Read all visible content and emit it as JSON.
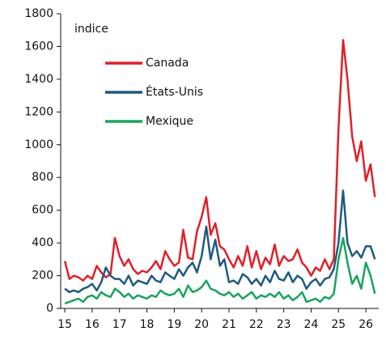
{
  "chart_data": {
    "type": "line",
    "y_label": "indice",
    "x": [
      2015,
      2015.17,
      2015.33,
      2015.5,
      2015.67,
      2015.83,
      2016,
      2016.17,
      2016.33,
      2016.5,
      2016.67,
      2016.83,
      2017,
      2017.17,
      2017.33,
      2017.5,
      2017.67,
      2017.83,
      2018,
      2018.17,
      2018.33,
      2018.5,
      2018.67,
      2018.83,
      2019,
      2019.17,
      2019.33,
      2019.5,
      2019.67,
      2019.83,
      2020,
      2020.17,
      2020.33,
      2020.5,
      2020.67,
      2020.83,
      2021,
      2021.17,
      2021.33,
      2021.5,
      2021.67,
      2021.83,
      2022,
      2022.17,
      2022.33,
      2022.5,
      2022.67,
      2022.83,
      2023,
      2023.17,
      2023.33,
      2023.5,
      2023.67,
      2023.83,
      2024,
      2024.17,
      2024.33,
      2024.5,
      2024.67,
      2024.83,
      2025,
      2025.17,
      2025.33,
      2025.5,
      2025.67,
      2025.83,
      2026,
      2026.17,
      2026.33
    ],
    "series": [
      {
        "name": "Canada",
        "color": "#e0202a",
        "values": [
          290,
          180,
          200,
          190,
          170,
          200,
          180,
          260,
          220,
          190,
          210,
          430,
          320,
          260,
          300,
          240,
          210,
          230,
          220,
          250,
          290,
          240,
          350,
          300,
          260,
          280,
          480,
          310,
          300,
          470,
          560,
          680,
          450,
          520,
          380,
          360,
          300,
          250,
          320,
          260,
          380,
          250,
          350,
          240,
          310,
          270,
          390,
          260,
          320,
          290,
          300,
          360,
          280,
          250,
          200,
          250,
          230,
          300,
          240,
          300,
          1100,
          1640,
          1400,
          1050,
          900,
          1020,
          780,
          880,
          680
        ]
      },
      {
        "name": "États-Unis",
        "color": "#1f5a7f",
        "values": [
          120,
          100,
          110,
          100,
          120,
          130,
          150,
          110,
          160,
          250,
          200,
          180,
          180,
          150,
          200,
          140,
          170,
          160,
          150,
          200,
          170,
          160,
          220,
          200,
          180,
          240,
          200,
          250,
          280,
          220,
          320,
          500,
          300,
          420,
          260,
          300,
          160,
          170,
          150,
          210,
          190,
          150,
          180,
          140,
          200,
          160,
          230,
          180,
          170,
          220,
          160,
          200,
          180,
          120,
          160,
          180,
          140,
          180,
          190,
          240,
          400,
          720,
          400,
          320,
          350,
          310,
          380,
          380,
          300
        ]
      },
      {
        "name": "Mexique",
        "color": "#1aa35e",
        "values": [
          30,
          40,
          50,
          60,
          40,
          70,
          80,
          60,
          100,
          80,
          70,
          120,
          100,
          70,
          90,
          60,
          80,
          70,
          60,
          80,
          70,
          110,
          90,
          80,
          90,
          120,
          70,
          140,
          100,
          110,
          130,
          170,
          120,
          110,
          90,
          80,
          100,
          70,
          90,
          60,
          80,
          100,
          60,
          80,
          70,
          90,
          70,
          100,
          60,
          80,
          50,
          70,
          100,
          40,
          50,
          60,
          40,
          70,
          60,
          90,
          300,
          430,
          280,
          150,
          200,
          120,
          280,
          200,
          90
        ]
      }
    ],
    "xlim": [
      2014.85,
      2026.47
    ],
    "xticks": [
      {
        "value": 2015,
        "label": "15"
      },
      {
        "value": 2016,
        "label": "16"
      },
      {
        "value": 2017,
        "label": "17"
      },
      {
        "value": 2018,
        "label": "18"
      },
      {
        "value": 2019,
        "label": "19"
      },
      {
        "value": 2020,
        "label": "20"
      },
      {
        "value": 2021,
        "label": "21"
      },
      {
        "value": 2022,
        "label": "22"
      },
      {
        "value": 2023,
        "label": "23"
      },
      {
        "value": 2024,
        "label": "24"
      },
      {
        "value": 2025,
        "label": "25"
      },
      {
        "value": 2026,
        "label": "26"
      }
    ],
    "ylim": [
      0,
      1800
    ],
    "yticks": [
      0,
      200,
      400,
      600,
      800,
      1000,
      1200,
      1400,
      1600,
      1800
    ],
    "grid": false
  }
}
